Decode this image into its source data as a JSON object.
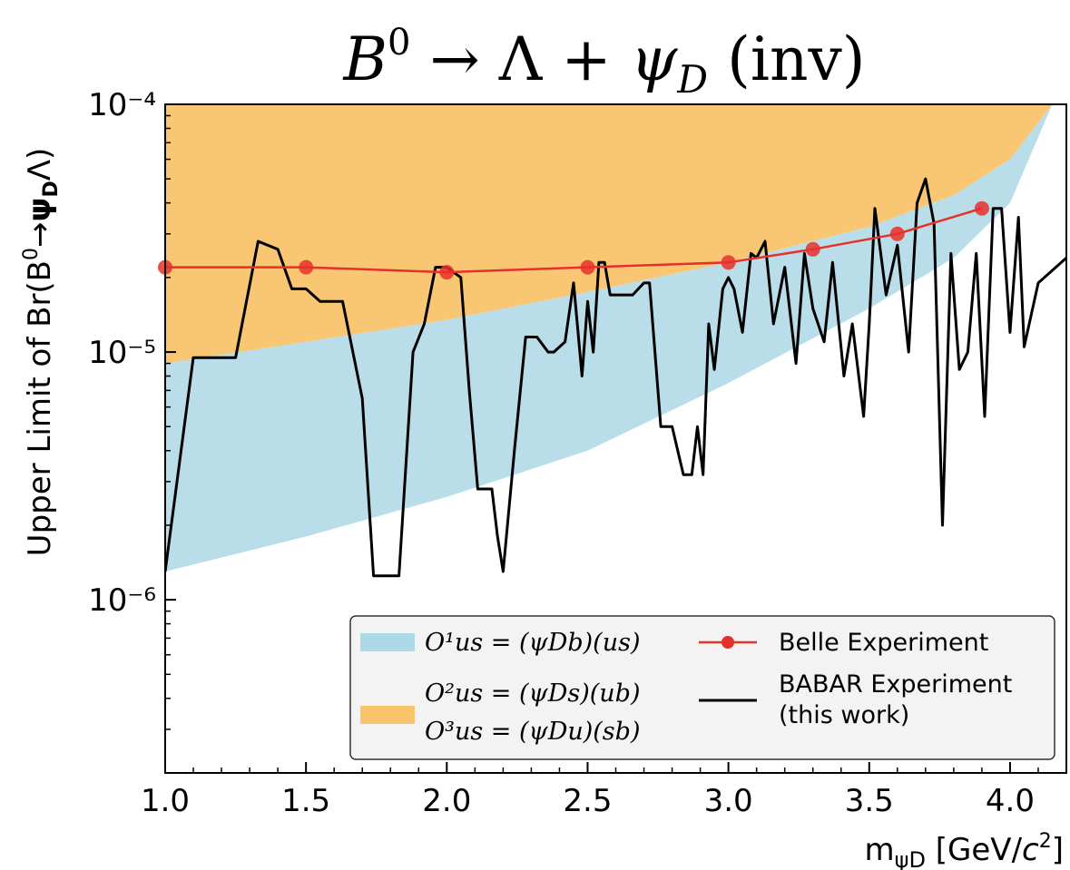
{
  "chart_data": {
    "type": "line",
    "title": "B⁰ → Λ + ψ_D (inv)",
    "xlabel": "m_ψD [GeV/c²]",
    "ylabel": "Upper Limit of Br(B⁰→ψ_DΛ)",
    "xlim": [
      1.0,
      4.2
    ],
    "ylim": [
      2e-07,
      0.0001
    ],
    "yscale": "log",
    "x_ticks": [
      1.0,
      1.5,
      2.0,
      2.5,
      3.0,
      3.5,
      4.0
    ],
    "x_tick_labels": [
      "1.0",
      "1.5",
      "2.0",
      "2.5",
      "3.0",
      "3.5",
      "4.0"
    ],
    "y_ticks": [
      1e-06,
      1e-05,
      0.0001
    ],
    "y_tick_labels": [
      "10⁻⁶",
      "10⁻⁵",
      "10⁻⁴"
    ],
    "grid": false,
    "legend_position": "bottom-right",
    "bands": [
      {
        "name": "O¹us = (ψDb)(us)",
        "color": "#add8e6",
        "x": [
          1.0,
          1.5,
          2.0,
          2.5,
          3.0,
          3.5,
          3.8,
          4.0,
          4.15
        ],
        "lower": [
          1.3e-06,
          1.8e-06,
          2.6e-06,
          4e-06,
          7.5e-06,
          1.5e-05,
          2.4e-05,
          4e-05,
          0.0001
        ],
        "upper": [
          9e-06,
          1.1e-05,
          1.35e-05,
          1.75e-05,
          2.3e-05,
          3.2e-05,
          4.3e-05,
          6e-05,
          0.0001
        ]
      },
      {
        "name": "O²us = (ψDs)(ub)  O³us = (ψDu)(sb)",
        "color": "#f9c46b",
        "x": [
          1.0,
          1.5,
          2.0,
          2.5,
          3.0,
          3.5,
          3.8,
          4.0,
          4.15
        ],
        "lower": [
          9e-06,
          1.1e-05,
          1.35e-05,
          1.75e-05,
          2.3e-05,
          3.2e-05,
          4.3e-05,
          6e-05,
          0.0001
        ],
        "upper": [
          0.0001,
          0.0001,
          0.0001,
          0.0001,
          0.0001,
          0.0001,
          0.0001,
          0.0001,
          0.0001
        ]
      }
    ],
    "series": [
      {
        "name": "Belle Experiment",
        "color": "#e8302a",
        "x": [
          1.0,
          1.5,
          2.0,
          2.5,
          3.0,
          3.3,
          3.6,
          3.9
        ],
        "y": [
          2.2e-05,
          2.2e-05,
          2.1e-05,
          2.2e-05,
          2.3e-05,
          2.6e-05,
          3e-05,
          3.8e-05
        ]
      },
      {
        "name": "BABAR Experiment (this work)",
        "color": "#000000",
        "x": [
          1.0,
          1.1,
          1.25,
          1.33,
          1.4,
          1.45,
          1.5,
          1.55,
          1.63,
          1.7,
          1.74,
          1.83,
          1.88,
          1.92,
          1.96,
          2.0,
          2.05,
          2.08,
          2.11,
          2.16,
          2.18,
          2.2,
          2.24,
          2.28,
          2.32,
          2.36,
          2.38,
          2.42,
          2.45,
          2.48,
          2.5,
          2.52,
          2.54,
          2.56,
          2.58,
          2.6,
          2.62,
          2.66,
          2.7,
          2.72,
          2.76,
          2.78,
          2.8,
          2.84,
          2.87,
          2.89,
          2.91,
          2.93,
          2.95,
          2.98,
          3.0,
          3.02,
          3.05,
          3.08,
          3.1,
          3.13,
          3.16,
          3.2,
          3.24,
          3.27,
          3.3,
          3.34,
          3.37,
          3.41,
          3.44,
          3.48,
          3.5,
          3.52,
          3.56,
          3.6,
          3.64,
          3.67,
          3.7,
          3.73,
          3.76,
          3.79,
          3.82,
          3.85,
          3.88,
          3.91,
          3.94,
          3.97,
          4.0,
          4.03,
          4.05,
          4.1,
          4.2
        ],
        "y": [
          1.3e-06,
          9.5e-06,
          9.5e-06,
          2.8e-05,
          2.6e-05,
          1.8e-05,
          1.8e-05,
          1.6e-05,
          1.6e-05,
          6.5e-06,
          1.25e-06,
          1.25e-06,
          1e-05,
          1.3e-05,
          2.2e-05,
          2.2e-05,
          2e-05,
          7e-06,
          2.8e-06,
          2.8e-06,
          1.8e-06,
          1.3e-06,
          4e-06,
          1.15e-05,
          1.15e-05,
          1e-05,
          1e-05,
          1.1e-05,
          1.9e-05,
          8e-06,
          1.6e-05,
          1e-05,
          2.3e-05,
          2.3e-05,
          1.7e-05,
          1.7e-05,
          1.7e-05,
          1.7e-05,
          1.9e-05,
          1.9e-05,
          5e-06,
          5e-06,
          5e-06,
          3.2e-06,
          3.2e-06,
          5e-06,
          3.2e-06,
          1.3e-05,
          8.5e-06,
          1.8e-05,
          2e-05,
          1.8e-05,
          1.2e-05,
          2.5e-05,
          2.4e-05,
          2.8e-05,
          1.3e-05,
          2.2e-05,
          9e-06,
          2.5e-05,
          1.5e-05,
          1.1e-05,
          2.3e-05,
          8e-06,
          1.3e-05,
          5.5e-06,
          1.3e-05,
          3.8e-05,
          1.7e-05,
          2.7e-05,
          1e-05,
          4e-05,
          5e-05,
          3.3e-05,
          2e-06,
          2.5e-05,
          8.5e-06,
          1e-05,
          2.5e-05,
          5.5e-06,
          3.8e-05,
          3.8e-05,
          1.2e-05,
          3.5e-05,
          1.05e-05,
          1.9e-05,
          2.4e-05
        ]
      }
    ],
    "legend": {
      "band1_label": "O¹us = (ψDb)(us)",
      "band2_label_line1": "O²us = (ψDs)(ub)",
      "band2_label_line2": "O³us = (ψDu)(sb)",
      "belle_label": "Belle Experiment",
      "babar_label_line1": "BABAR Experiment",
      "babar_label_line2": "(this work)"
    }
  }
}
